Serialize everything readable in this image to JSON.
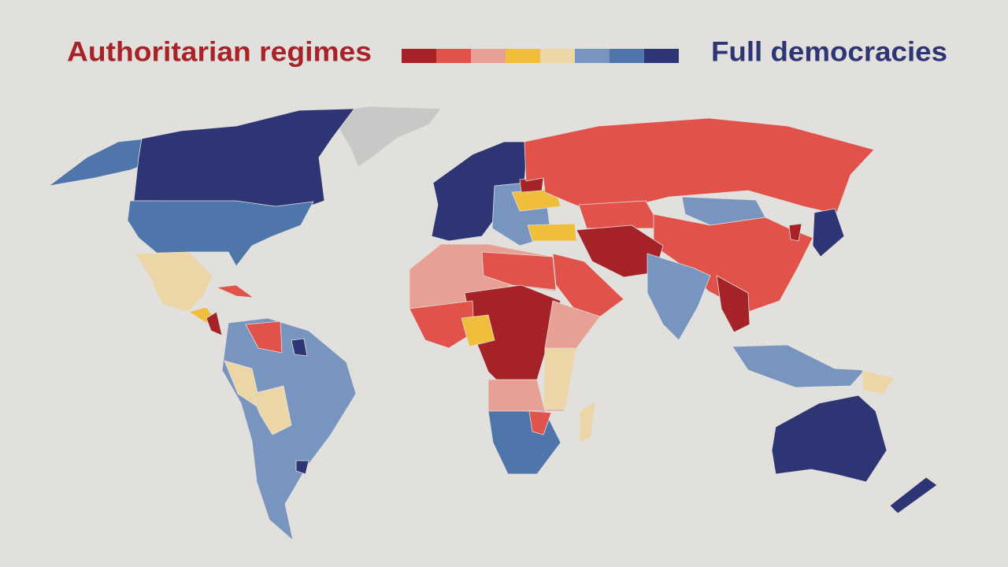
{
  "legend": {
    "left_label": "Authoritarian regimes",
    "right_label": "Full democracies",
    "colors": [
      "#a52227",
      "#e0524a",
      "#e9a094",
      "#f0be3a",
      "#ecd6a8",
      "#7895bf",
      "#4f76aa",
      "#2e3575"
    ]
  }
}
